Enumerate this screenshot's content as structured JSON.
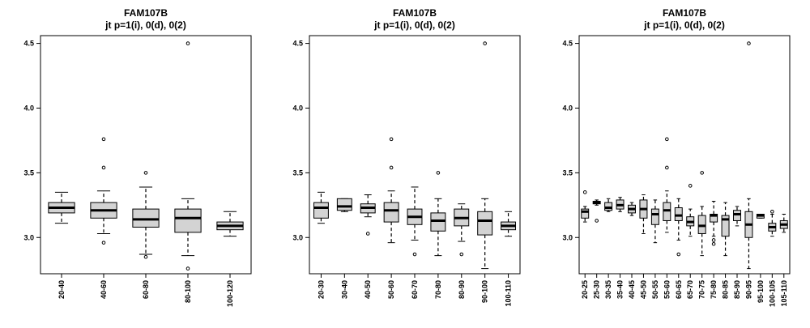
{
  "colors": {
    "box_fill": "#d3d3d3",
    "stroke": "#000000",
    "background": "#ffffff"
  },
  "chart_data": [
    {
      "type": "boxplot",
      "title": "FAM107B",
      "subtitle": "jt p=1(i), 0(d), 0(2)",
      "xlabel": "",
      "ylabel": "",
      "ylim": [
        2.72,
        4.56
      ],
      "yticks": [
        "3.0",
        "3.5",
        "4.0",
        "4.5"
      ],
      "grid": false,
      "categories": [
        "20-40",
        "40-60",
        "60-80",
        "80-100",
        "100-120"
      ],
      "boxes": [
        {
          "min": 3.11,
          "q1": 3.19,
          "median": 3.23,
          "q3": 3.27,
          "max": 3.35,
          "outliers": []
        },
        {
          "min": 3.03,
          "q1": 3.15,
          "median": 3.21,
          "q3": 3.27,
          "max": 3.36,
          "outliers": [
            2.96,
            3.54,
            3.76
          ]
        },
        {
          "min": 2.87,
          "q1": 3.08,
          "median": 3.14,
          "q3": 3.22,
          "max": 3.39,
          "outliers": [
            2.85,
            3.5
          ]
        },
        {
          "min": 2.86,
          "q1": 3.04,
          "median": 3.15,
          "q3": 3.22,
          "max": 3.3,
          "outliers": [
            2.76,
            4.5
          ]
        },
        {
          "min": 3.01,
          "q1": 3.06,
          "median": 3.09,
          "q3": 3.12,
          "max": 3.2,
          "outliers": []
        }
      ]
    },
    {
      "type": "boxplot",
      "title": "FAM107B",
      "subtitle": "jt p=1(i), 0(d), 0(2)",
      "xlabel": "",
      "ylabel": "",
      "ylim": [
        2.72,
        4.56
      ],
      "yticks": [
        "3.0",
        "3.5",
        "4.0",
        "4.5"
      ],
      "grid": false,
      "categories": [
        "20-30",
        "30-40",
        "40-50",
        "50-60",
        "60-70",
        "70-80",
        "80-90",
        "90-100",
        "100-110"
      ],
      "boxes": [
        {
          "min": 3.11,
          "q1": 3.15,
          "median": 3.23,
          "q3": 3.27,
          "max": 3.35,
          "outliers": []
        },
        {
          "min": 3.2,
          "q1": 3.21,
          "median": 3.24,
          "q3": 3.3,
          "max": 3.3,
          "outliers": []
        },
        {
          "min": 3.16,
          "q1": 3.19,
          "median": 3.23,
          "q3": 3.26,
          "max": 3.33,
          "outliers": [
            3.03
          ]
        },
        {
          "min": 2.96,
          "q1": 3.12,
          "median": 3.21,
          "q3": 3.27,
          "max": 3.36,
          "outliers": [
            3.54,
            3.76
          ]
        },
        {
          "min": 2.98,
          "q1": 3.1,
          "median": 3.16,
          "q3": 3.22,
          "max": 3.39,
          "outliers": [
            2.87
          ]
        },
        {
          "min": 2.86,
          "q1": 3.05,
          "median": 3.13,
          "q3": 3.19,
          "max": 3.3,
          "outliers": [
            3.5
          ]
        },
        {
          "min": 2.97,
          "q1": 3.09,
          "median": 3.15,
          "q3": 3.22,
          "max": 3.26,
          "outliers": [
            2.87
          ]
        },
        {
          "min": 2.76,
          "q1": 3.02,
          "median": 3.13,
          "q3": 3.2,
          "max": 3.3,
          "outliers": [
            4.5
          ]
        },
        {
          "min": 3.01,
          "q1": 3.06,
          "median": 3.09,
          "q3": 3.12,
          "max": 3.2,
          "outliers": []
        }
      ]
    },
    {
      "type": "boxplot",
      "title": "FAM107B",
      "subtitle": "jt p=1(i), 0(d), 0(2)",
      "xlabel": "",
      "ylabel": "",
      "ylim": [
        2.72,
        4.56
      ],
      "yticks": [
        "3.0",
        "3.5",
        "4.0",
        "4.5"
      ],
      "grid": false,
      "categories": [
        "20-25",
        "25-30",
        "30-35",
        "35-40",
        "40-45",
        "45-50",
        "50-55",
        "55-60",
        "60-65",
        "65-70",
        "70-75",
        "75-80",
        "80-85",
        "85-90",
        "90-95",
        "95-100",
        "100-105",
        "105-110"
      ],
      "boxes": [
        {
          "min": 3.12,
          "q1": 3.15,
          "median": 3.2,
          "q3": 3.22,
          "max": 3.24,
          "outliers": [
            3.35
          ]
        },
        {
          "min": 3.25,
          "q1": 3.26,
          "median": 3.27,
          "q3": 3.28,
          "max": 3.29,
          "outliers": [
            3.13
          ]
        },
        {
          "min": 3.2,
          "q1": 3.21,
          "median": 3.23,
          "q3": 3.27,
          "max": 3.3,
          "outliers": []
        },
        {
          "min": 3.2,
          "q1": 3.22,
          "median": 3.25,
          "q3": 3.29,
          "max": 3.31,
          "outliers": []
        },
        {
          "min": 3.17,
          "q1": 3.19,
          "median": 3.22,
          "q3": 3.25,
          "max": 3.27,
          "outliers": []
        },
        {
          "min": 3.03,
          "q1": 3.15,
          "median": 3.22,
          "q3": 3.29,
          "max": 3.33,
          "outliers": []
        },
        {
          "min": 2.96,
          "q1": 3.1,
          "median": 3.18,
          "q3": 3.22,
          "max": 3.29,
          "outliers": []
        },
        {
          "min": 3.04,
          "q1": 3.13,
          "median": 3.21,
          "q3": 3.27,
          "max": 3.36,
          "outliers": [
            3.54,
            3.76
          ]
        },
        {
          "min": 2.98,
          "q1": 3.13,
          "median": 3.17,
          "q3": 3.23,
          "max": 3.3,
          "outliers": [
            2.87
          ]
        },
        {
          "min": 3.01,
          "q1": 3.09,
          "median": 3.12,
          "q3": 3.16,
          "max": 3.22,
          "outliers": [
            3.4
          ]
        },
        {
          "min": 2.86,
          "q1": 3.03,
          "median": 3.09,
          "q3": 3.17,
          "max": 3.24,
          "outliers": [
            3.5
          ]
        },
        {
          "min": 3.01,
          "q1": 3.12,
          "median": 3.17,
          "q3": 3.18,
          "max": 3.28,
          "outliers": [
            2.95,
            2.98
          ]
        },
        {
          "min": 2.86,
          "q1": 3.01,
          "median": 3.14,
          "q3": 3.17,
          "max": 3.27,
          "outliers": []
        },
        {
          "min": 3.09,
          "q1": 3.13,
          "median": 3.18,
          "q3": 3.21,
          "max": 3.24,
          "outliers": []
        },
        {
          "min": 2.76,
          "q1": 3.0,
          "median": 3.1,
          "q3": 3.2,
          "max": 3.3,
          "outliers": [
            4.5
          ]
        },
        {
          "min": 3.15,
          "q1": 3.15,
          "median": 3.17,
          "q3": 3.18,
          "max": 3.18,
          "outliers": []
        },
        {
          "min": 3.01,
          "q1": 3.05,
          "median": 3.08,
          "q3": 3.11,
          "max": 3.18,
          "outliers": [
            3.2
          ]
        },
        {
          "min": 3.04,
          "q1": 3.07,
          "median": 3.1,
          "q3": 3.13,
          "max": 3.18,
          "outliers": []
        }
      ]
    }
  ]
}
